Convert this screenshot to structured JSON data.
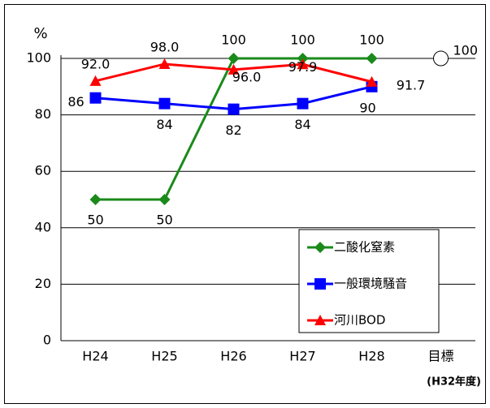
{
  "chart_data": {
    "type": "line",
    "y_label": "%",
    "note": "(H32年度)",
    "categories": [
      "H24",
      "H25",
      "H26",
      "H27",
      "H28",
      "目標"
    ],
    "ylim": [
      0,
      100
    ],
    "yticks": [
      0,
      20,
      40,
      60,
      80,
      100
    ],
    "grid": true,
    "series": [
      {
        "name": "二酸化窒素",
        "color": "#1a8a1a",
        "marker": "diamond",
        "values": [
          50,
          50,
          100,
          100,
          100,
          null
        ]
      },
      {
        "name": "一般環境騒音",
        "color": "#0000ff",
        "marker": "square",
        "values": [
          86,
          84,
          82,
          84,
          90,
          null
        ]
      },
      {
        "name": "河川BOD",
        "color": "#ff0000",
        "marker": "triangle",
        "values": [
          92.0,
          98.0,
          96.0,
          97.9,
          91.7,
          null
        ],
        "value_labels": [
          "92.0",
          "98.0",
          "96.0",
          "97.9",
          "91.7",
          null
        ]
      }
    ],
    "target": 100
  }
}
